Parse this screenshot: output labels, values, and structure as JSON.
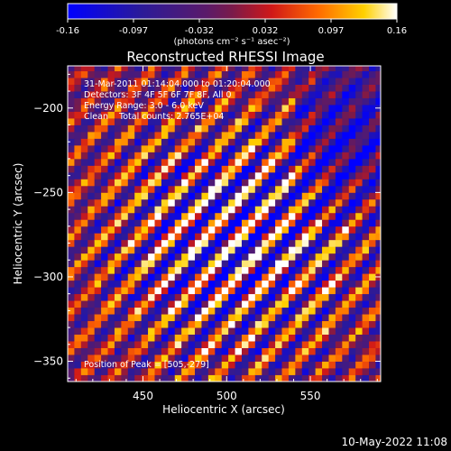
{
  "chart_data": {
    "type": "heatmap",
    "title": "Reconstructed RHESSI Image",
    "xlabel": "Heliocentric X (arcsec)",
    "ylabel": "Heliocentric Y (arcsec)",
    "xlim": [
      405,
      592
    ],
    "ylim": [
      -362,
      -175
    ],
    "x_ticks": [
      450,
      500,
      550
    ],
    "y_ticks": [
      -200,
      -250,
      -300,
      -350
    ],
    "colorbar": {
      "ticks": [
        "-0.16",
        "-0.097",
        "-0.032",
        "0.032",
        "0.097",
        "0.16"
      ],
      "range": [
        -0.16,
        0.16
      ],
      "unit_label": "(photons cm⁻² s⁻¹ asec⁻²)"
    },
    "annotations": [
      "31-Mar-2011 01:14:04.000 to 01:20:04.000",
      "Detectors: 3F 4F 5F 6F 7F 8F, All 0",
      "Energy Range: 3.0 - 6.0 keV",
      "Clean    Total counts: 2.765E+04"
    ],
    "peak_label": "Position of Peak = [505,-279]",
    "peak": [
      505,
      -279
    ],
    "grid": {
      "cell_arcsec": 4,
      "stripe_angle_deg": 42,
      "stripe_period_arcsec": 15,
      "envelope_sigma_arcsec": 60,
      "base_amplitude": 0.16,
      "background_amplitude": 0.06
    }
  },
  "footer": {
    "timestamp": "10-May-2022 11:08"
  }
}
